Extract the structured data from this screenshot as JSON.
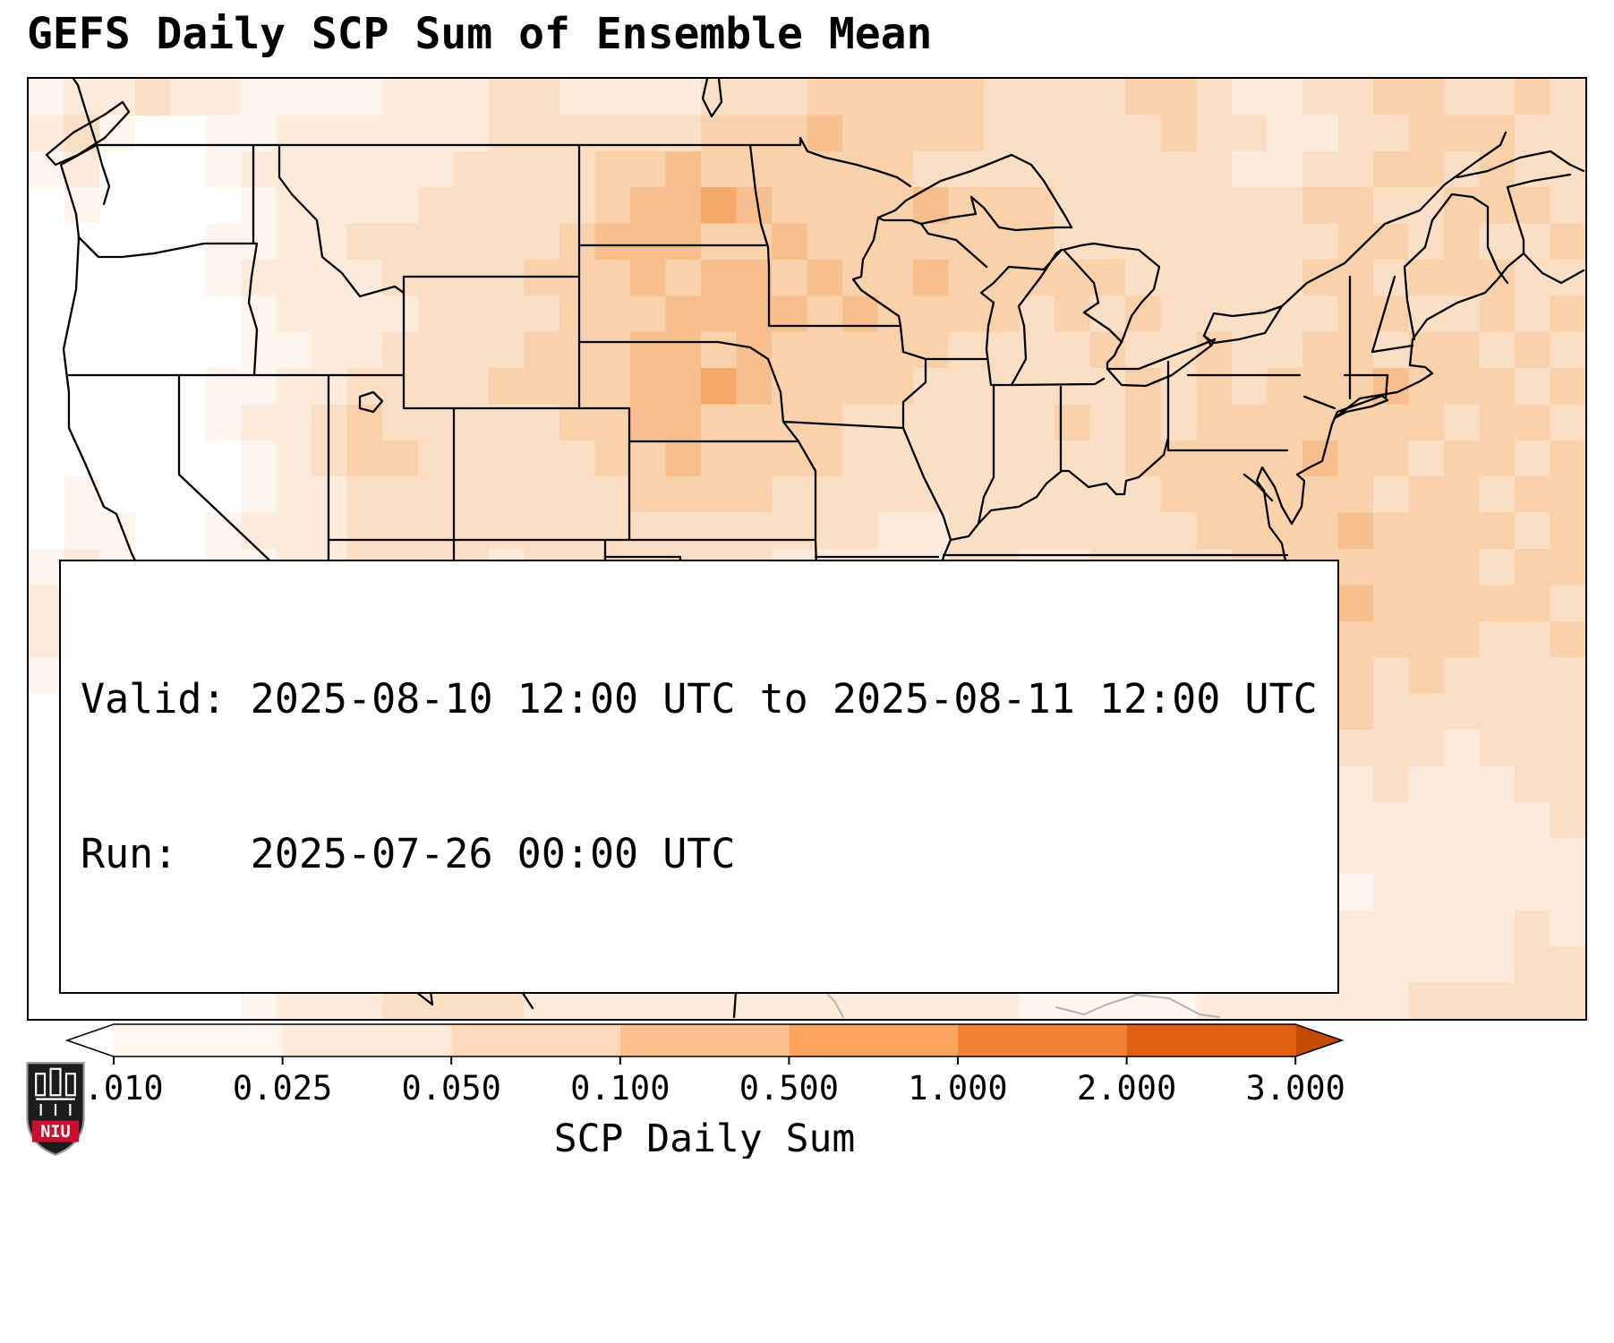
{
  "title": "GEFS Daily SCP Sum of Ensemble Mean",
  "annotation": {
    "line1": "Valid: 2025-08-10 12:00 UTC to 2025-08-11 12:00 UTC",
    "line2": "Run:   2025-07-26 00:00 UTC"
  },
  "colorbar": {
    "label": "SCP Daily Sum",
    "ticks": [
      "0.010",
      "0.025",
      "0.050",
      "0.100",
      "0.500",
      "1.000",
      "2.000",
      "3.000"
    ],
    "segment_colors": [
      "#fff6ee",
      "#feeadb",
      "#fdd8ba",
      "#fdc191",
      "#fba45e",
      "#f38235",
      "#e06010"
    ],
    "under_color": "#ffffff",
    "over_color": "#c24c03"
  },
  "logo": {
    "text": "NIU",
    "red": "#c8102e"
  },
  "chart_data": {
    "type": "heatmap",
    "title": "GEFS Daily SCP Sum of Ensemble Mean",
    "colorbar_label": "SCP Daily Sum",
    "colorbar_ticks": [
      0.01,
      0.025,
      0.05,
      0.1,
      0.5,
      1.0,
      2.0,
      3.0
    ],
    "valid": "2025-08-10 12:00 UTC to 2025-08-11 12:00 UTC",
    "run": "2025-07-26 00:00 UTC",
    "legend_note": "grid values are intensity levels 0-7 mapped to palette colors; level 0 = no SCP (white), level 7 = highest daily SCP sum",
    "palette": [
      "#ffffff",
      "#fdf5ee",
      "#fcebdb",
      "#fbdfc5",
      "#f9d1ab",
      "#f7bf8d",
      "#f4a96b",
      "#f0924a"
    ],
    "grid": {
      "cols": 44,
      "rows": 26,
      "rows_data": [
        "12232211112223322223334444433334432233443343",
        "23100112222223333334445444433333433223344433",
        "12000122222233334454444443333333332233443433",
        "01000012222333334556544445444333333344334443",
        "00000112233333345554454444444333333334434334",
        "00000122223333444545545445444443333344344433",
        "00000012222333344455554544443434333334433434",
        "00000011223333444554544444333343343344344343",
        "00000112233334444556544443333334343444544434",
        "00000122343333344554444333333434344444443443",
        "00000012344333334454444333333334444454434434",
        "01000012233333333444433333333333444444344344",
        "01100122233333333333333322333333344445444434",
        "12100112233332333333322222332233334444444344",
        "22101223333333333322222222112222334445444443",
        "23211233433223333222211111122223344444444334",
        "12322333332233333322221111112233444444343333",
        "01233343333333333332222211222334445444333333",
        "02233333333333344543333322222233344333332333",
        "01223333333333455433333332222223333332322233",
        "00122333443333344333333333222122233322222223",
        "00012233334333333333333332222112222222222222",
        "00001223333343333333333222222111222221222222",
        "00000122233334332333322222221111122222222232",
        "00000112236332332223322222221111112222222233",
        "00000012223333222222222222221111122222233333"
      ]
    }
  }
}
